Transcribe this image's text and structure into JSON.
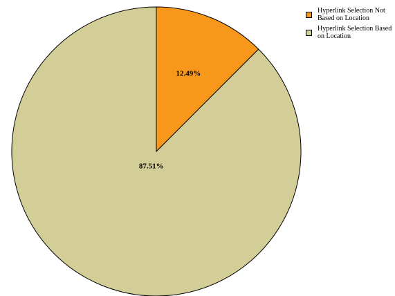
{
  "chart_data": {
    "type": "pie",
    "title": "",
    "legend_position": "top-right",
    "slices": [
      {
        "label": "Hyperlink Selection Not Based on Location",
        "value": 12.49,
        "value_label": "12.49%",
        "color": "#f7981d"
      },
      {
        "label": "Hyperlink Selection Based on Location",
        "value": 87.51,
        "value_label": "87.51%",
        "color": "#d3cd98"
      }
    ]
  }
}
